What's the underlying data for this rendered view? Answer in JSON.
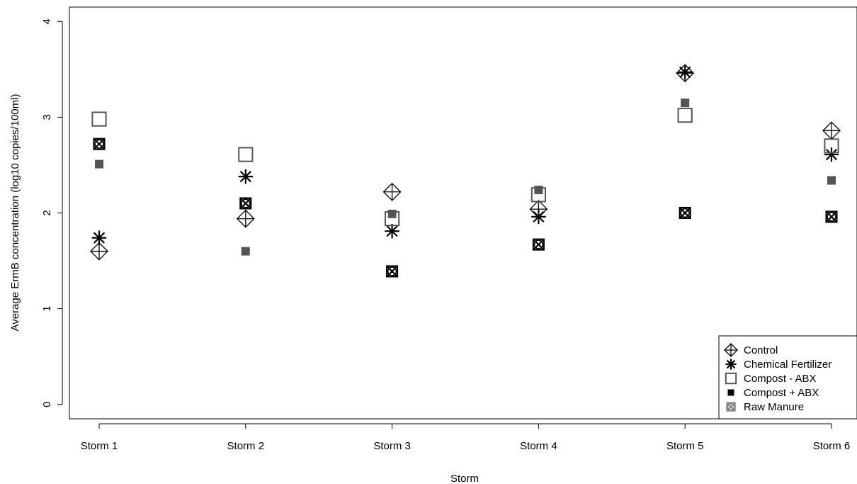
{
  "chart_data": {
    "type": "scatter",
    "title": "",
    "xlabel": "Storm",
    "ylabel": "Average ErmB concentration (log10 copies/100ml)",
    "categories": [
      "Storm 1",
      "Storm 2",
      "Storm 3",
      "Storm 4",
      "Storm 5",
      "Storm 6"
    ],
    "yticks": [
      "0",
      "1",
      "2",
      "3",
      "4"
    ],
    "ylim": [
      -0.15,
      4.15
    ],
    "grid": false,
    "legend_position": "bottom-right",
    "series": [
      {
        "name": "Control",
        "symbol": "diamond-plus",
        "color": "#000000",
        "values": [
          1.6,
          1.94,
          2.22,
          2.04,
          3.46,
          2.86
        ]
      },
      {
        "name": "Chemical Fertilizer",
        "symbol": "asterisk",
        "color": "#000000",
        "values": [
          1.74,
          2.38,
          1.81,
          1.96,
          3.47,
          2.61
        ]
      },
      {
        "name": "Compost - ABX",
        "symbol": "open-square",
        "color": "#555555",
        "values": [
          2.98,
          2.61,
          1.94,
          2.19,
          3.02,
          2.7
        ]
      },
      {
        "name": "Compost + ABX",
        "symbol": "filled-square",
        "color": "#555555",
        "values": [
          2.51,
          1.6,
          1.99,
          2.24,
          3.15,
          2.34
        ]
      },
      {
        "name": "Raw Manure",
        "symbol": "square-x-circle",
        "color": "#000000",
        "values": [
          2.72,
          2.1,
          1.39,
          1.67,
          2.0,
          1.96
        ]
      }
    ]
  }
}
